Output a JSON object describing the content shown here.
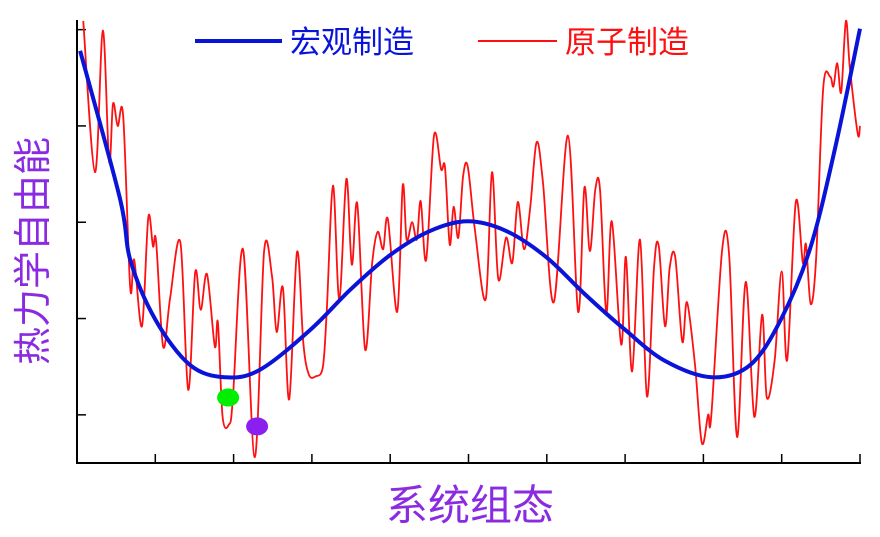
{
  "chart_data": {
    "type": "line",
    "title": "",
    "xlabel": "系统组态",
    "ylabel": "热力学自由能",
    "xlim": [
      0,
      10
    ],
    "ylim": [
      0,
      4.6
    ],
    "x_ticks": [
      0,
      1,
      2,
      3,
      4,
      5,
      6,
      7,
      8,
      9,
      10
    ],
    "y_ticks": [
      0.5,
      1.5,
      2.5,
      3.5,
      4.5
    ],
    "tick_labels_shown": false,
    "grid": false,
    "legend_placement": "top-center",
    "colors": {
      "axis": "#000000",
      "label": "#8a2be2"
    },
    "series": [
      {
        "name": "宏观制造",
        "color": "#0a14d8",
        "x": [
          0.04,
          0.55,
          0.68,
          1.0,
          1.44,
          1.89,
          2.34,
          2.99,
          3.49,
          4.0,
          4.51,
          4.99,
          5.48,
          5.99,
          6.49,
          6.99,
          7.51,
          8.11,
          8.6,
          8.99,
          9.36,
          9.68,
          10.0
        ],
        "y": [
          4.28,
          2.74,
          2.11,
          1.49,
          1.02,
          0.89,
          0.97,
          1.39,
          1.8,
          2.16,
          2.41,
          2.51,
          2.41,
          2.14,
          1.75,
          1.39,
          1.06,
          0.89,
          1.02,
          1.49,
          2.22,
          3.26,
          4.51
        ]
      },
      {
        "name": "原子制造",
        "color": "#ff1010",
        "x": [
          0.08,
          0.23,
          0.33,
          0.41,
          0.46,
          0.52,
          0.59,
          0.68,
          0.73,
          0.83,
          0.91,
          0.97,
          1.01,
          1.1,
          1.19,
          1.32,
          1.42,
          1.51,
          1.58,
          1.66,
          1.76,
          1.8,
          1.86,
          1.94,
          1.99,
          2.12,
          2.27,
          2.39,
          2.49,
          2.55,
          2.63,
          2.71,
          2.81,
          2.89,
          2.96,
          3.05,
          3.14,
          3.19,
          3.27,
          3.35,
          3.44,
          3.51,
          3.58,
          3.68,
          3.77,
          3.84,
          3.91,
          3.97,
          4.09,
          4.16,
          4.21,
          4.28,
          4.34,
          4.39,
          4.46,
          4.56,
          4.65,
          4.7,
          4.76,
          4.81,
          4.87,
          4.93,
          4.99,
          5.08,
          5.22,
          5.3,
          5.38,
          5.48,
          5.56,
          5.63,
          5.71,
          5.79,
          5.87,
          5.95,
          6.09,
          6.27,
          6.4,
          6.48,
          6.55,
          6.62,
          6.68,
          6.76,
          6.83,
          6.95,
          7.01,
          7.09,
          7.19,
          7.28,
          7.37,
          7.43,
          7.51,
          7.57,
          7.64,
          7.73,
          7.79,
          7.89,
          7.98,
          8.06,
          8.1,
          8.24,
          8.33,
          8.43,
          8.54,
          8.65,
          8.75,
          8.81,
          8.91,
          9.0,
          9.07,
          9.18,
          9.27,
          9.31,
          9.37,
          9.44,
          9.53,
          9.62,
          9.66,
          9.71,
          9.76,
          9.82,
          9.87,
          9.97,
          10.0
        ],
        "y": [
          4.59,
          3.02,
          4.49,
          3.13,
          3.73,
          3.5,
          3.6,
          1.82,
          2.11,
          1.42,
          2.55,
          2.25,
          2.3,
          1.21,
          1.72,
          2.29,
          0.76,
          1.98,
          1.59,
          1.96,
          1.21,
          1.46,
          0.48,
          0.4,
          0.66,
          2.22,
          0.06,
          2.2,
          1.94,
          1.36,
          1.82,
          0.66,
          2.19,
          1.25,
          0.92,
          0.9,
          1.0,
          1.59,
          2.88,
          1.7,
          2.95,
          2.06,
          2.69,
          1.18,
          2.08,
          2.4,
          2.22,
          2.53,
          1.57,
          2.88,
          2.32,
          2.5,
          2.32,
          2.72,
          2.11,
          3.4,
          3.05,
          3.07,
          2.27,
          2.66,
          2.34,
          2.97,
          3.08,
          2.43,
          1.7,
          3.02,
          1.91,
          2.34,
          2.08,
          2.71,
          2.22,
          2.67,
          3.33,
          2.92,
          1.67,
          3.4,
          1.57,
          2.86,
          2.2,
          2.84,
          2.84,
          1.56,
          2.51,
          1.23,
          2.14,
          0.95,
          2.32,
          0.69,
          2.04,
          2.25,
          1.42,
          2.03,
          2.14,
          1.26,
          1.67,
          1.04,
          0.21,
          0.5,
          0.48,
          2.22,
          2.15,
          0.27,
          1.88,
          0.48,
          1.54,
          0.68,
          1.07,
          1.99,
          1.07,
          2.71,
          2.08,
          2.27,
          1.65,
          2.14,
          3.89,
          4.01,
          3.91,
          4.15,
          3.85,
          4.59,
          4.11,
          3.42,
          3.5
        ]
      }
    ],
    "markers": [
      {
        "x": 1.93,
        "y": 0.68,
        "color": "#00ee00"
      },
      {
        "x": 2.3,
        "y": 0.38,
        "color": "#8a1ff0"
      }
    ]
  }
}
